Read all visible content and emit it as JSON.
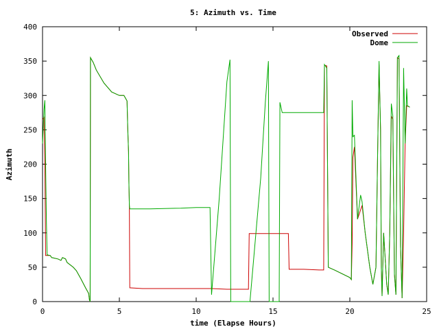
{
  "chart_data": {
    "type": "line",
    "title": "5: Azimuth vs. Time",
    "xlabel": "time (Elapse Hours)",
    "ylabel": "Azimuth",
    "xlim": [
      0,
      25
    ],
    "ylim": [
      0,
      400
    ],
    "xticks": [
      0,
      5,
      10,
      15,
      20,
      25
    ],
    "yticks": [
      0,
      50,
      100,
      150,
      200,
      250,
      300,
      350,
      400
    ],
    "grid": false,
    "legend_position": "top-right",
    "series": [
      {
        "name": "Observed",
        "color": "#cc0000",
        "points": [
          [
            0.0,
            265
          ],
          [
            0.1,
            268
          ],
          [
            0.15,
            200
          ],
          [
            0.2,
            67
          ],
          [
            0.5,
            67
          ],
          [
            0.6,
            64
          ],
          [
            1.0,
            62
          ],
          [
            1.2,
            60
          ],
          [
            1.3,
            64
          ],
          [
            1.5,
            62
          ],
          [
            1.6,
            57
          ],
          [
            2.0,
            50
          ],
          [
            2.2,
            45
          ],
          [
            2.5,
            33
          ],
          [
            2.8,
            20
          ],
          [
            3.0,
            12
          ],
          [
            3.05,
            3
          ],
          [
            3.1,
            0
          ],
          [
            3.12,
            355
          ],
          [
            3.3,
            348
          ],
          [
            3.5,
            337
          ],
          [
            4.0,
            318
          ],
          [
            4.5,
            305
          ],
          [
            5.0,
            300
          ],
          [
            5.3,
            300
          ],
          [
            5.5,
            292
          ],
          [
            5.55,
            250
          ],
          [
            5.6,
            218
          ],
          [
            5.62,
            175
          ],
          [
            5.65,
            140
          ],
          [
            5.68,
            20
          ],
          [
            6.5,
            19
          ],
          [
            8.0,
            19
          ],
          [
            9.5,
            19
          ],
          [
            10.0,
            19
          ],
          [
            11.0,
            19
          ],
          [
            12.0,
            18
          ],
          [
            13.0,
            18
          ],
          [
            13.4,
            18
          ],
          [
            13.45,
            99
          ],
          [
            14.5,
            99
          ],
          [
            15.5,
            99
          ],
          [
            16.0,
            99
          ],
          [
            16.05,
            47
          ],
          [
            17.0,
            47
          ],
          [
            18.0,
            46
          ],
          [
            18.3,
            46
          ],
          [
            18.35,
            344
          ],
          [
            18.5,
            343
          ],
          [
            18.55,
            200
          ],
          [
            18.6,
            50
          ],
          [
            19.0,
            46
          ],
          [
            20.0,
            35
          ],
          [
            20.1,
            32
          ],
          [
            20.15,
            85
          ],
          [
            20.2,
            210
          ],
          [
            20.3,
            225
          ],
          [
            20.5,
            120
          ],
          [
            20.8,
            140
          ],
          [
            21.0,
            100
          ],
          [
            21.3,
            50
          ],
          [
            21.5,
            25
          ],
          [
            21.7,
            50
          ],
          [
            21.8,
            200
          ],
          [
            21.9,
            345
          ],
          [
            22.0,
            250
          ],
          [
            22.05,
            50
          ],
          [
            22.1,
            8
          ],
          [
            22.2,
            100
          ],
          [
            22.4,
            25
          ],
          [
            22.5,
            10
          ],
          [
            22.6,
            100
          ],
          [
            22.7,
            270
          ],
          [
            22.8,
            265
          ],
          [
            22.9,
            40
          ],
          [
            23.0,
            10
          ],
          [
            23.1,
            355
          ],
          [
            23.2,
            353
          ],
          [
            23.3,
            80
          ],
          [
            23.4,
            5
          ],
          [
            23.5,
            100
          ],
          [
            23.6,
            230
          ],
          [
            23.7,
            285
          ],
          [
            23.9,
            283
          ]
        ]
      },
      {
        "name": "Dome",
        "color": "#00aa00",
        "points": [
          [
            0.0,
            230
          ],
          [
            0.1,
            280
          ],
          [
            0.15,
            293
          ],
          [
            0.2,
            200
          ],
          [
            0.25,
            120
          ],
          [
            0.3,
            68
          ],
          [
            0.5,
            67
          ],
          [
            0.6,
            64
          ],
          [
            1.0,
            62
          ],
          [
            1.2,
            60
          ],
          [
            1.3,
            64
          ],
          [
            1.5,
            62
          ],
          [
            1.6,
            57
          ],
          [
            2.0,
            50
          ],
          [
            2.2,
            45
          ],
          [
            2.5,
            33
          ],
          [
            2.8,
            20
          ],
          [
            3.0,
            12
          ],
          [
            3.05,
            3
          ],
          [
            3.1,
            0
          ],
          [
            3.12,
            355
          ],
          [
            3.3,
            348
          ],
          [
            3.5,
            337
          ],
          [
            4.0,
            318
          ],
          [
            4.5,
            305
          ],
          [
            5.0,
            300
          ],
          [
            5.3,
            300
          ],
          [
            5.5,
            292
          ],
          [
            5.55,
            250
          ],
          [
            5.6,
            218
          ],
          [
            5.62,
            175
          ],
          [
            5.65,
            140
          ],
          [
            5.68,
            135
          ],
          [
            7.0,
            135
          ],
          [
            9.0,
            136
          ],
          [
            10.0,
            137
          ],
          [
            10.9,
            137
          ],
          [
            11.0,
            10
          ],
          [
            11.5,
            150
          ],
          [
            12.0,
            320
          ],
          [
            12.2,
            352
          ],
          [
            12.25,
            0
          ],
          [
            13.4,
            0
          ],
          [
            13.5,
            0
          ],
          [
            14.2,
            180
          ],
          [
            14.5,
            290
          ],
          [
            14.7,
            350
          ],
          [
            14.75,
            0
          ],
          [
            15.4,
            0
          ],
          [
            15.45,
            290
          ],
          [
            15.6,
            275
          ],
          [
            17.0,
            275
          ],
          [
            18.3,
            275
          ],
          [
            18.35,
            345
          ],
          [
            18.5,
            340
          ],
          [
            18.55,
            200
          ],
          [
            18.6,
            50
          ],
          [
            19.0,
            46
          ],
          [
            20.0,
            35
          ],
          [
            20.1,
            32
          ],
          [
            20.15,
            293
          ],
          [
            20.2,
            240
          ],
          [
            20.3,
            242
          ],
          [
            20.5,
            120
          ],
          [
            20.7,
            155
          ],
          [
            20.8,
            145
          ],
          [
            21.0,
            100
          ],
          [
            21.3,
            50
          ],
          [
            21.5,
            25
          ],
          [
            21.7,
            50
          ],
          [
            21.8,
            200
          ],
          [
            21.9,
            350
          ],
          [
            22.0,
            250
          ],
          [
            22.05,
            50
          ],
          [
            22.1,
            8
          ],
          [
            22.2,
            100
          ],
          [
            22.4,
            25
          ],
          [
            22.5,
            10
          ],
          [
            22.6,
            100
          ],
          [
            22.7,
            288
          ],
          [
            22.8,
            270
          ],
          [
            22.9,
            40
          ],
          [
            23.0,
            10
          ],
          [
            23.1,
            355
          ],
          [
            23.2,
            358
          ],
          [
            23.3,
            80
          ],
          [
            23.4,
            5
          ],
          [
            23.5,
            340
          ],
          [
            23.6,
            230
          ],
          [
            23.7,
            310
          ],
          [
            23.75,
            285
          ],
          [
            23.9,
            283
          ]
        ]
      }
    ]
  }
}
